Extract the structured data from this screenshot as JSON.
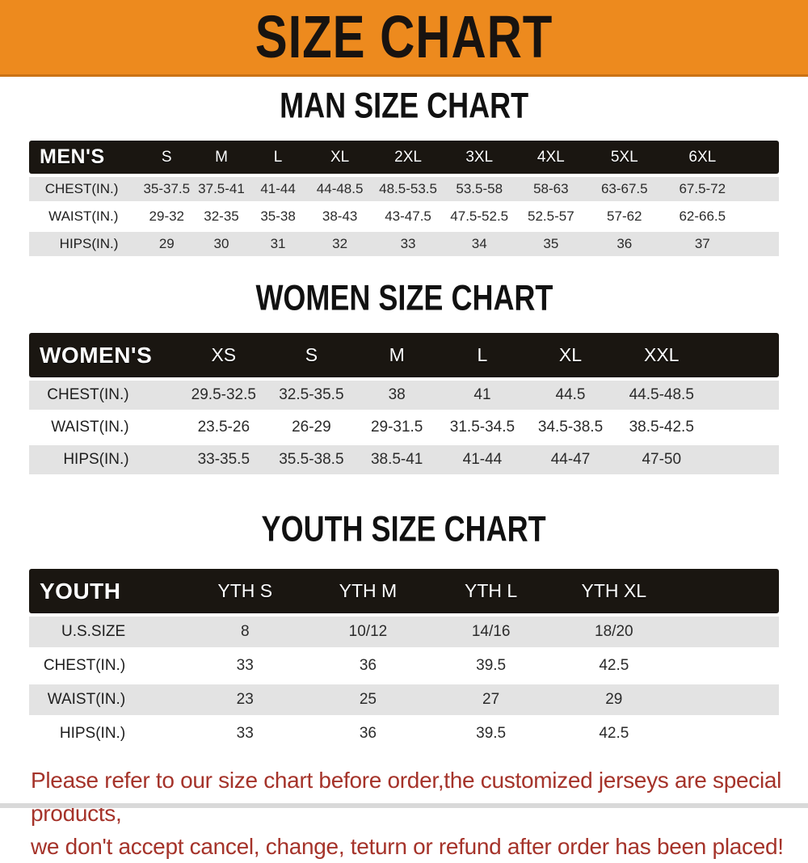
{
  "banner": {
    "title": "SIZE CHART"
  },
  "colors": {
    "banner_orange": "#ED8A1E",
    "header_bar": "#1A1611",
    "row_shade": "#E3E3E3",
    "disclaimer_red": "#A5332A"
  },
  "sections": [
    {
      "heading": "MAN SIZE CHART",
      "table": {
        "header_label": "MEN'S",
        "columns": [
          "S",
          "M",
          "L",
          "XL",
          "2XL",
          "3XL",
          "4XL",
          "5XL",
          "6XL"
        ],
        "rows": [
          {
            "label": "CHEST(IN.)",
            "values": [
              "35-37.5",
              "37.5-41",
              "41-44",
              "44-48.5",
              "48.5-53.5",
              "53.5-58",
              "58-63",
              "63-67.5",
              "67.5-72"
            ]
          },
          {
            "label": "WAIST(IN.)",
            "values": [
              "29-32",
              "32-35",
              "35-38",
              "38-43",
              "43-47.5",
              "47.5-52.5",
              "52.5-57",
              "57-62",
              "62-66.5"
            ]
          },
          {
            "label": "HIPS(IN.)",
            "values": [
              "29",
              "30",
              "31",
              "32",
              "33",
              "34",
              "35",
              "36",
              "37"
            ]
          }
        ]
      }
    },
    {
      "heading": "WOMEN SIZE CHART",
      "table": {
        "header_label": "WOMEN'S",
        "columns": [
          "XS",
          "S",
          "M",
          "L",
          "XL",
          "XXL"
        ],
        "rows": [
          {
            "label": "CHEST(IN.)",
            "values": [
              "29.5-32.5",
              "32.5-35.5",
              "38",
              "41",
              "44.5",
              "44.5-48.5"
            ]
          },
          {
            "label": "WAIST(IN.)",
            "values": [
              "23.5-26",
              "26-29",
              "29-31.5",
              "31.5-34.5",
              "34.5-38.5",
              "38.5-42.5"
            ]
          },
          {
            "label": "HIPS(IN.)",
            "values": [
              "33-35.5",
              "35.5-38.5",
              "38.5-41",
              "41-44",
              "44-47",
              "47-50"
            ]
          }
        ]
      }
    },
    {
      "heading": "YOUTH SIZE CHART",
      "table": {
        "header_label": "YOUTH",
        "columns": [
          "YTH S",
          "YTH M",
          "YTH L",
          "YTH XL"
        ],
        "rows": [
          {
            "label": "U.S.SIZE",
            "values": [
              "8",
              "10/12",
              "14/16",
              "18/20"
            ]
          },
          {
            "label": "CHEST(IN.)",
            "values": [
              "33",
              "36",
              "39.5",
              "42.5"
            ]
          },
          {
            "label": "WAIST(IN.)",
            "values": [
              "23",
              "25",
              "27",
              "29"
            ]
          },
          {
            "label": "HIPS(IN.)",
            "values": [
              "33",
              "36",
              "39.5",
              "42.5"
            ]
          }
        ]
      }
    }
  ],
  "disclaimer": {
    "line1": "Please refer to our size chart before order,the customized jerseys are special products,",
    "line2": "we don't accept cancel, change, teturn or refund after order has been placed!"
  }
}
